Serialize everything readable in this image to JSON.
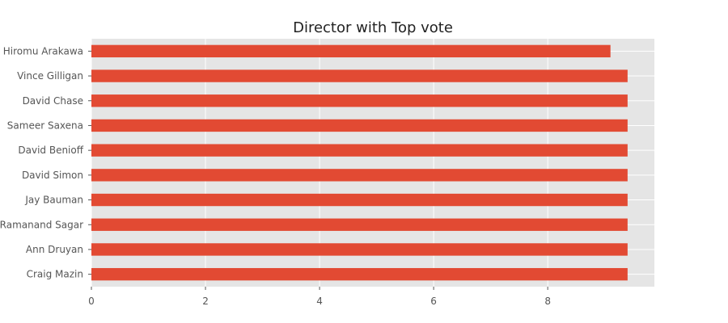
{
  "chart_data": {
    "type": "bar",
    "orientation": "horizontal",
    "title": "Director with Top vote",
    "xlabel": "",
    "ylabel": "",
    "categories": [
      "Craig Mazin",
      "Ann Druyan",
      "Ramanand Sagar",
      "Jay Bauman",
      "David Simon",
      "David Benioff",
      "Sameer Saxena",
      "David Chase",
      "Vince Gilligan",
      "Hiromu Arakawa"
    ],
    "values": [
      9.4,
      9.4,
      9.4,
      9.4,
      9.4,
      9.4,
      9.4,
      9.4,
      9.4,
      9.1
    ],
    "xlim": [
      0,
      9.87
    ],
    "xticks": [
      "0",
      "2",
      "4",
      "6",
      "8"
    ],
    "grid": true,
    "colors": {
      "bar": "#E24A33",
      "plot_background": "#E5E5E5",
      "grid": "#FFFFFF",
      "title": "#222222",
      "tick_label": "#555555"
    }
  }
}
